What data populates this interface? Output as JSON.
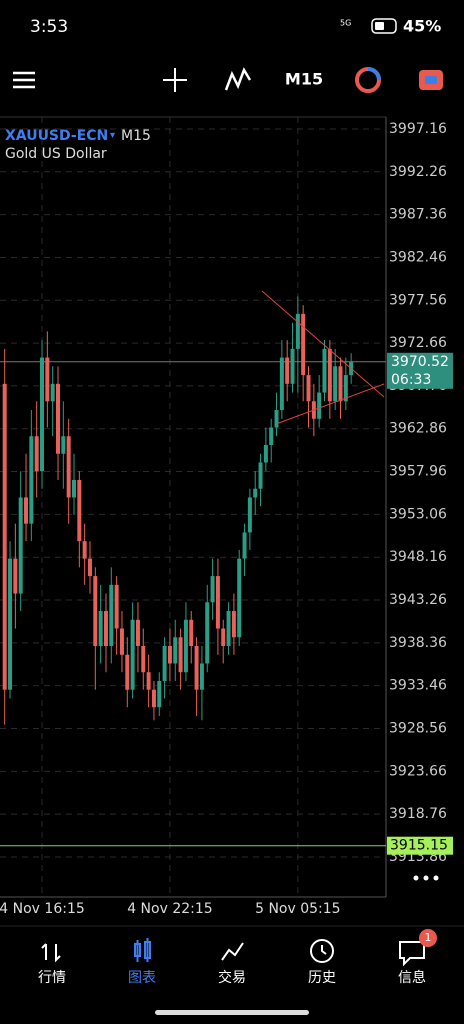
{
  "status_bar": {
    "time": "3:53",
    "network": "5G",
    "battery": "45%"
  },
  "toolbar": {
    "timeframe": "M15"
  },
  "chart_data": {
    "type": "candlestick",
    "symbol": "XAUUSD-ECN",
    "timeframe": "M15",
    "description": "Gold US Dollar",
    "categories": [
      null,
      null,
      null,
      null,
      null,
      null,
      null,
      "4 Nov 16:15",
      null,
      null,
      null,
      null,
      null,
      null,
      null,
      null,
      null,
      null,
      null,
      null,
      null,
      null,
      null,
      null,
      null,
      null,
      null,
      null,
      null,
      null,
      null,
      "4 Nov 22:15",
      null,
      null,
      null,
      null,
      null,
      null,
      null,
      null,
      null,
      null,
      null,
      null,
      null,
      null,
      null,
      null,
      null,
      null,
      null,
      null,
      null,
      null,
      null,
      "5 Nov 05:15",
      null,
      null,
      null,
      null,
      null,
      null,
      null,
      null,
      null,
      null
    ],
    "open": [
      3968,
      3933,
      3948,
      3944,
      3955,
      3952,
      3962,
      3958,
      3971,
      3966,
      3968,
      3960,
      3962,
      3955,
      3957,
      3950,
      3948,
      3946,
      3938,
      3942,
      3938,
      3945,
      3940,
      3937,
      3933,
      3941,
      3938,
      3935,
      3933,
      3931,
      3934,
      3938,
      3936,
      3939,
      3935,
      3941,
      3938,
      3933,
      3936,
      3943,
      3946,
      3940,
      3938,
      3942,
      3939,
      3948,
      3951,
      3955,
      3956,
      3959,
      3961,
      3963,
      3965,
      3971,
      3968,
      3972,
      3976,
      3969,
      3966,
      3964,
      3967,
      3972,
      3966,
      3970,
      3966,
      3969
    ],
    "high": [
      3972,
      3950,
      3952,
      3958,
      3960,
      3965,
      3966,
      3973,
      3974,
      3970,
      3970,
      3966,
      3964,
      3960,
      3958,
      3952,
      3950,
      3947,
      3945,
      3944,
      3947,
      3946,
      3942,
      3939,
      3943,
      3943,
      3940,
      3937,
      3934,
      3935,
      3939,
      3940,
      3941,
      3940,
      3943,
      3942,
      3939,
      3938,
      3945,
      3948,
      3948,
      3941,
      3943,
      3944,
      3949,
      3952,
      3956,
      3958,
      3960,
      3963,
      3964,
      3967,
      3973,
      3973,
      3975,
      3978,
      3977,
      3970,
      3968,
      3969,
      3973,
      3973,
      3972,
      3971,
      3971,
      3971.5
    ],
    "low": [
      3929,
      3932,
      3940,
      3942,
      3950,
      3950,
      3955,
      3956,
      3963,
      3962,
      3957,
      3956,
      3952,
      3953,
      3947,
      3945,
      3944,
      3933,
      3936,
      3935,
      3936,
      3937,
      3935,
      3931,
      3932,
      3935,
      3933,
      3931,
      3929.5,
      3930,
      3932,
      3934,
      3934,
      3933,
      3934,
      3936,
      3930,
      3929.5,
      3935,
      3941,
      3937,
      3936,
      3937,
      3937,
      3938,
      3946,
      3949,
      3953,
      3954,
      3958,
      3959,
      3962,
      3964,
      3966,
      3967,
      3967,
      3966,
      3963,
      3962,
      3963,
      3966,
      3964,
      3965,
      3964,
      3965,
      3968
    ],
    "close": [
      3933,
      3948,
      3944,
      3955,
      3952,
      3962,
      3958,
      3971,
      3966,
      3968,
      3960,
      3962,
      3955,
      3957,
      3950,
      3948,
      3946,
      3938,
      3942,
      3938,
      3945,
      3940,
      3937,
      3933,
      3941,
      3938,
      3935,
      3933,
      3931,
      3934,
      3938,
      3936,
      3939,
      3935,
      3941,
      3938,
      3933,
      3936,
      3943,
      3946,
      3940,
      3938,
      3942,
      3939,
      3948,
      3951,
      3955,
      3956,
      3959,
      3961,
      3963,
      3965,
      3971,
      3968,
      3972,
      3976,
      3969,
      3966,
      3964,
      3967,
      3972,
      3966,
      3970,
      3966,
      3969,
      3970.52
    ],
    "up_color": "#2a9d86",
    "down_color": "#e8615a",
    "ylim": [
      3909.28,
      3998.53
    ],
    "yticks": [
      3997.16,
      3992.26,
      3987.36,
      3982.46,
      3977.56,
      3972.66,
      3967.76,
      3962.86,
      3957.96,
      3953.06,
      3948.16,
      3943.26,
      3938.36,
      3933.46,
      3928.56,
      3923.66,
      3918.76,
      3913.86
    ],
    "grid": true,
    "current_price": 3970.52,
    "countdown": "06:33",
    "level_line": 3915.15
  },
  "nav": {
    "items": [
      "行情",
      "图表",
      "交易",
      "历史",
      "信息"
    ],
    "badge": 1
  }
}
